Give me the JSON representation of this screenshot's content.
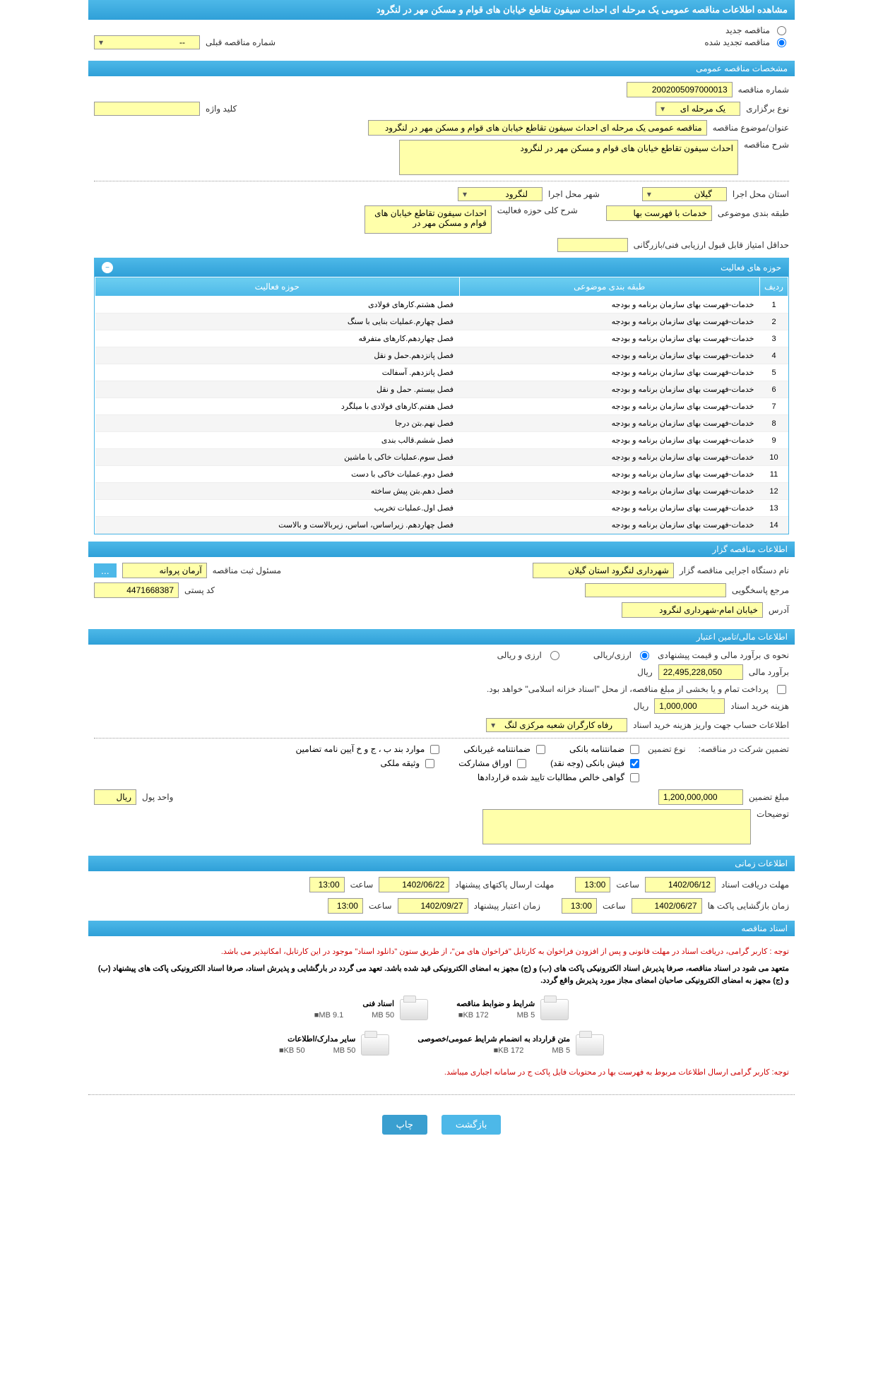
{
  "header": {
    "title": "مشاهده اطلاعات مناقصه عمومی یک مرحله ای احداث سیفون تقاطع خیابان های قوام و مسکن مهر در لنگرود"
  },
  "topRadios": {
    "new": "مناقصه جدید",
    "renewed": "مناقصه تجدید شده",
    "prevLabel": "شماره مناقصه قبلی",
    "prevValue": "--"
  },
  "sections": {
    "general": "مشخصات مناقصه عمومی",
    "organizer": "اطلاعات مناقصه گزار",
    "financial": "اطلاعات مالی/تامین اعتبار",
    "timing": "اطلاعات زمانی",
    "docs": "اسناد مناقصه"
  },
  "general": {
    "numberLabel": "شماره مناقصه",
    "numberValue": "2002005097000013",
    "typeLabel": "نوع برگزاری",
    "typeValue": "یک مرحله ای",
    "keywordLabel": "کلید واژه",
    "keywordValue": "",
    "titleLabel": "عنوان/موضوع مناقصه",
    "titleValue": "مناقصه عمومی یک مرحله ای احداث سیفون تقاطع خیابان های قوام و مسکن مهر در لنگرود",
    "descLabel": "شرح مناقصه",
    "descValue": "احداث سیفون تقاطع خیابان های قوام و مسکن مهر در لنگرود",
    "provinceLabel": "استان محل اجرا",
    "provinceValue": "گیلان",
    "cityLabel": "شهر محل اجرا",
    "cityValue": "لنگرود",
    "categoryLabel": "طبقه بندی موضوعی",
    "categoryValue": "خدمات با فهرست بها",
    "activityDescLabel": "شرح کلی حوزه فعالیت",
    "activityDescValue": "احداث سیفون تقاطع خیابان های قوام و مسکن مهر در",
    "minScoreLabel": "حداقل امتیاز قابل قبول ارزیابی فنی/بازرگانی",
    "minScoreValue": ""
  },
  "activityTable": {
    "title": "حوزه های فعالیت",
    "cols": {
      "num": "ردیف",
      "category": "طبقه بندی موضوعی",
      "activity": "حوزه فعالیت"
    },
    "rows": [
      {
        "n": "1",
        "cat": "خدمات-فهرست بهای سازمان برنامه و بودجه",
        "act": "فصل هشتم.کارهای فولادی"
      },
      {
        "n": "2",
        "cat": "خدمات-فهرست بهای سازمان برنامه و بودجه",
        "act": "فصل چهارم.عملیات بنایی با سنگ"
      },
      {
        "n": "3",
        "cat": "خدمات-فهرست بهای سازمان برنامه و بودجه",
        "act": "فصل چهاردهم.کارهای متفرقه"
      },
      {
        "n": "4",
        "cat": "خدمات-فهرست بهای سازمان برنامه و بودجه",
        "act": "فصل پانزدهم.حمل و نقل"
      },
      {
        "n": "5",
        "cat": "خدمات-فهرست بهای سازمان برنامه و بودجه",
        "act": "فصل پانزدهم. آسفالت"
      },
      {
        "n": "6",
        "cat": "خدمات-فهرست بهای سازمان برنامه و بودجه",
        "act": "فصل بیستم. حمل و نقل"
      },
      {
        "n": "7",
        "cat": "خدمات-فهرست بهای سازمان برنامه و بودجه",
        "act": "فصل هفتم.کارهای فولادی با میلگرد"
      },
      {
        "n": "8",
        "cat": "خدمات-فهرست بهای سازمان برنامه و بودجه",
        "act": "فصل نهم.بتن درجا"
      },
      {
        "n": "9",
        "cat": "خدمات-فهرست بهای سازمان برنامه و بودجه",
        "act": "فصل ششم.قالب بندی"
      },
      {
        "n": "10",
        "cat": "خدمات-فهرست بهای سازمان برنامه و بودجه",
        "act": "فصل سوم.عملیات خاکی با ماشین"
      },
      {
        "n": "11",
        "cat": "خدمات-فهرست بهای سازمان برنامه و بودجه",
        "act": "فصل دوم.عملیات خاکی با دست"
      },
      {
        "n": "12",
        "cat": "خدمات-فهرست بهای سازمان برنامه و بودجه",
        "act": "فصل دهم.بتن پیش ساخته"
      },
      {
        "n": "13",
        "cat": "خدمات-فهرست بهای سازمان برنامه و بودجه",
        "act": "فصل اول.عملیات تخریب"
      },
      {
        "n": "14",
        "cat": "خدمات-فهرست بهای سازمان برنامه و بودجه",
        "act": "فصل چهاردهم. زیراساس، اساس، زیربالاست و بالاست"
      }
    ]
  },
  "organizer": {
    "nameLabel": "نام دستگاه اجرایی مناقصه گزار",
    "nameValue": "شهرداری لنگرود استان گیلان",
    "registrarLabel": "مسئول ثبت مناقصه",
    "registrarValue": "آرمان پروانه",
    "moreBtn": "...",
    "contactLabel": "مرجع پاسخگویی",
    "contactValue": "",
    "postalLabel": "کد پستی",
    "postalValue": "4471668387",
    "addressLabel": "آدرس",
    "addressValue": "خیابان امام-شهرداری لنگرود"
  },
  "financial": {
    "estimateMethodLabel": "نحوه ی برآورد مالی و قیمت پیشنهادی",
    "rialOption": "ارزی/ریالی",
    "currencyOption": "ارزی و ریالی",
    "estimateLabel": "برآورد مالی",
    "estimateValue": "22,495,228,050",
    "rialUnit": "ریال",
    "paymentNote": "پرداخت تمام و یا بخشی از مبلغ مناقصه، از محل \"اسناد خزانه اسلامی\" خواهد بود.",
    "docCostLabel": "هزینه خرید اسناد",
    "docCostValue": "1,000,000",
    "accountLabel": "اطلاعات حساب جهت واریز هزینه خرید اسناد",
    "accountValue": "رفاه کارگران شعبه مرکزی لنگ",
    "guaranteeLabel": "تضمین شرکت در مناقصه:",
    "guaranteeTypeLabel": "نوع تضمین",
    "checks": {
      "bankGuarantee": "ضمانتنامه بانکی",
      "nonBankGuarantee": "ضمانتنامه غیربانکی",
      "regulation": "موارد بند ب ، ج و خ آیین نامه تضامین",
      "bankReceipt": "فیش بانکی (وجه نقد)",
      "participation": "اوراق مشارکت",
      "propertyDeed": "وثیقه ملکی",
      "netClaims": "گواهی خالص مطالبات تایید شده قراردادها"
    },
    "guaranteeAmountLabel": "مبلغ تضمین",
    "guaranteeAmountValue": "1,200,000,000",
    "currencyUnitLabel": "واحد پول",
    "currencyUnitValue": "ریال",
    "notesLabel": "توضیحات",
    "notesValue": ""
  },
  "timing": {
    "receiveDeadlineLabel": "مهلت دریافت اسناد",
    "receiveDeadlineDate": "1402/06/12",
    "receiveDeadlineTime": "13:00",
    "timeLabel": "ساعت",
    "sendDeadlineLabel": "مهلت ارسال پاکتهای پیشنهاد",
    "sendDeadlineDate": "1402/06/22",
    "sendDeadlineTime": "13:00",
    "openingLabel": "زمان بازگشایی پاکت ها",
    "openingDate": "1402/06/27",
    "openingTime": "13:00",
    "validityLabel": "زمان اعتبار پیشنهاد",
    "validityDate": "1402/09/27",
    "validityTime": "13:00"
  },
  "docs": {
    "note1": "توجه : کاربر گرامی، دریافت اسناد در مهلت قانونی و پس از افزودن فراخوان به کارتابل \"فراخوان های من\"، از طریق ستون \"دانلود اسناد\" موجود در این کارتابل، امکانپذیر می باشد.",
    "note2": "متعهد می شود در اسناد مناقصه، صرفا پذیرش اسناد الکترونیکی پاکت های (ب) و (ج) مجهز به امضای الکترونیکی قید شده باشد. تعهد می گردد در بارگشایی و پذیرش اسناد، صرفا اسناد الکترونیکی پاکت های پیشنهاد (ب) و (ج) مجهز به امضای الکترونیکی صاحبان امضای مجاز مورد پذیرش واقع گردد.",
    "items": [
      {
        "title": "شرایط و ضوابط مناقصه",
        "size": "172 KB",
        "max": "5 MB"
      },
      {
        "title": "اسناد فنی",
        "size": "9.1 MB",
        "max": "50 MB"
      },
      {
        "title": "متن قرارداد به انضمام شرایط عمومی/خصوصی",
        "size": "172 KB",
        "max": "5 MB"
      },
      {
        "title": "سایر مدارک/اطلاعات",
        "size": "50 KB",
        "max": "50 MB"
      }
    ],
    "note3": "توجه: کاربر گرامی ارسال اطلاعات مربوط به فهرست بها در محتویات فایل پاکت ج در سامانه اجباری میباشد."
  },
  "buttons": {
    "back": "بازگشت",
    "print": "چاپ"
  }
}
